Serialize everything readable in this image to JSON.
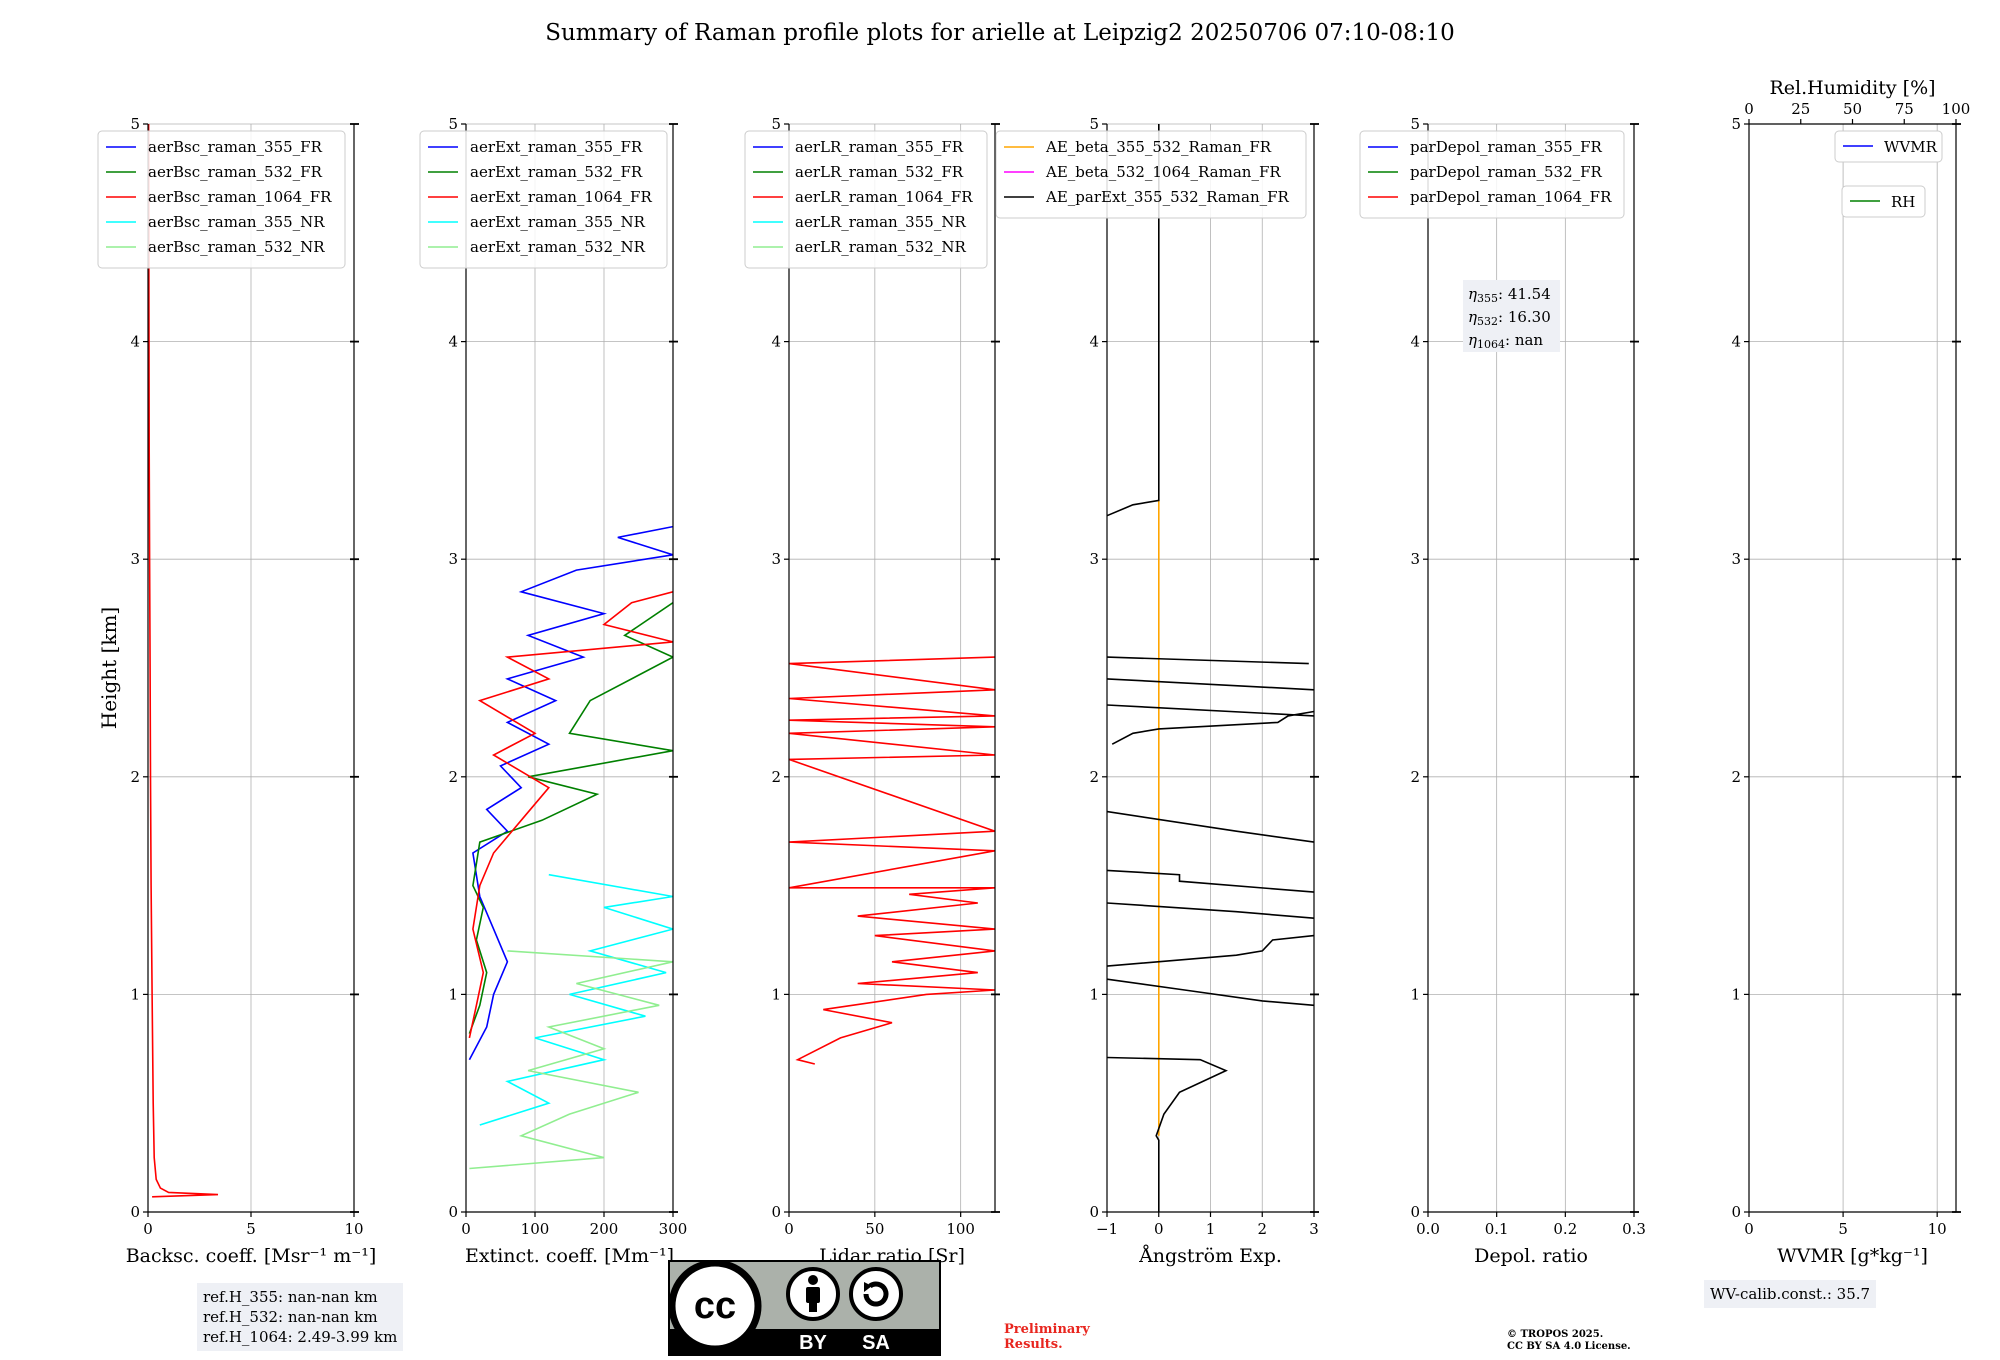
{
  "title": "Summary of Raman profile plots for arielle at Leipzig2 20250706 07:10-08:10",
  "colors": {
    "blue": "#0000ff",
    "green": "#008000",
    "red": "#ff0000",
    "cyan": "#00ffff",
    "lightgreen": "#90ee90",
    "orange": "#ffa500",
    "magenta": "#ff00ff",
    "black": "#000000"
  },
  "chart_data": [
    {
      "type": "line",
      "panel": "backscatter",
      "xlabel": "Backsc. coeff. [Msr⁻¹ m⁻¹]",
      "ylabel": "Height [km]",
      "xlim": [
        0,
        10
      ],
      "ylim": [
        0,
        5
      ],
      "xticks": [
        "0",
        "5",
        "10"
      ],
      "yticks": [
        "0",
        "1",
        "2",
        "3",
        "4",
        "5"
      ],
      "grid": true,
      "legend": "top-left",
      "series": [
        {
          "name": "aerBsc_raman_355_FR",
          "color": "#0000ff",
          "points": []
        },
        {
          "name": "aerBsc_raman_532_FR",
          "color": "#008000",
          "points": []
        },
        {
          "name": "aerBsc_raman_1064_FR",
          "color": "#ff0000",
          "points": [
            [
              0.2,
              0.07
            ],
            [
              3.4,
              0.08
            ],
            [
              1.0,
              0.09
            ],
            [
              0.6,
              0.11
            ],
            [
              0.4,
              0.15
            ],
            [
              0.3,
              0.25
            ],
            [
              0.25,
              0.5
            ],
            [
              0.2,
              1.0
            ],
            [
              0.15,
              1.5
            ],
            [
              0.12,
              2.0
            ],
            [
              0.1,
              2.5
            ],
            [
              0.08,
              3.0
            ],
            [
              0.06,
              3.5
            ],
            [
              0.05,
              4.0
            ],
            [
              0.04,
              4.5
            ],
            [
              0.03,
              5.0
            ]
          ]
        },
        {
          "name": "aerBsc_raman_355_NR",
          "color": "#00ffff",
          "points": []
        },
        {
          "name": "aerBsc_raman_532_NR",
          "color": "#90ee90",
          "points": []
        }
      ]
    },
    {
      "type": "line",
      "panel": "extinction",
      "xlabel": "Extinct. coeff. [Mm⁻¹]",
      "xlim": [
        0,
        300
      ],
      "ylim": [
        0,
        5
      ],
      "xticks": [
        "0",
        "100",
        "200",
        "300"
      ],
      "yticks": [
        "0",
        "1",
        "2",
        "3",
        "4",
        "5"
      ],
      "grid": true,
      "legend": "top-left",
      "series": [
        {
          "name": "aerExt_raman_355_FR",
          "color": "#0000ff",
          "points": [
            [
              5,
              0.7
            ],
            [
              30,
              0.85
            ],
            [
              40,
              1.0
            ],
            [
              60,
              1.15
            ],
            [
              40,
              1.3
            ],
            [
              20,
              1.45
            ],
            [
              10,
              1.65
            ],
            [
              60,
              1.75
            ],
            [
              30,
              1.85
            ],
            [
              80,
              1.95
            ],
            [
              50,
              2.05
            ],
            [
              120,
              2.15
            ],
            [
              60,
              2.25
            ],
            [
              130,
              2.35
            ],
            [
              60,
              2.45
            ],
            [
              170,
              2.55
            ],
            [
              90,
              2.65
            ],
            [
              200,
              2.75
            ],
            [
              80,
              2.85
            ],
            [
              160,
              2.95
            ],
            [
              300,
              3.02
            ],
            [
              220,
              3.1
            ],
            [
              300,
              3.15
            ]
          ]
        },
        {
          "name": "aerExt_raman_532_FR",
          "color": "#008000",
          "points": [
            [
              5,
              0.82
            ],
            [
              20,
              0.95
            ],
            [
              30,
              1.1
            ],
            [
              15,
              1.25
            ],
            [
              25,
              1.4
            ],
            [
              10,
              1.5
            ],
            [
              20,
              1.7
            ],
            [
              110,
              1.8
            ],
            [
              190,
              1.92
            ],
            [
              90,
              2.0
            ],
            [
              300,
              2.12
            ],
            [
              150,
              2.2
            ],
            [
              180,
              2.35
            ],
            [
              300,
              2.55
            ],
            [
              230,
              2.65
            ],
            [
              300,
              2.8
            ]
          ]
        },
        {
          "name": "aerExt_raman_1064_FR",
          "color": "#ff0000",
          "points": [
            [
              5,
              0.8
            ],
            [
              15,
              0.95
            ],
            [
              25,
              1.1
            ],
            [
              10,
              1.3
            ],
            [
              20,
              1.5
            ],
            [
              40,
              1.65
            ],
            [
              80,
              1.8
            ],
            [
              120,
              1.95
            ],
            [
              40,
              2.1
            ],
            [
              100,
              2.2
            ],
            [
              20,
              2.35
            ],
            [
              120,
              2.45
            ],
            [
              60,
              2.55
            ],
            [
              300,
              2.62
            ],
            [
              200,
              2.7
            ],
            [
              240,
              2.8
            ],
            [
              300,
              2.85
            ]
          ]
        },
        {
          "name": "aerExt_raman_355_NR",
          "color": "#00ffff",
          "points": [
            [
              20,
              0.4
            ],
            [
              120,
              0.5
            ],
            [
              60,
              0.6
            ],
            [
              200,
              0.7
            ],
            [
              100,
              0.8
            ],
            [
              260,
              0.9
            ],
            [
              150,
              1.0
            ],
            [
              290,
              1.1
            ],
            [
              180,
              1.2
            ],
            [
              300,
              1.3
            ],
            [
              200,
              1.4
            ],
            [
              300,
              1.45
            ],
            [
              120,
              1.55
            ]
          ]
        },
        {
          "name": "aerExt_raman_532_NR",
          "color": "#90ee90",
          "points": [
            [
              5,
              0.2
            ],
            [
              200,
              0.25
            ],
            [
              80,
              0.35
            ],
            [
              150,
              0.45
            ],
            [
              250,
              0.55
            ],
            [
              90,
              0.65
            ],
            [
              200,
              0.75
            ],
            [
              120,
              0.85
            ],
            [
              280,
              0.95
            ],
            [
              160,
              1.05
            ],
            [
              300,
              1.15
            ],
            [
              60,
              1.2
            ]
          ]
        }
      ]
    },
    {
      "type": "line",
      "panel": "lidar_ratio",
      "xlabel": "Lidar ratio [Sr]",
      "xlim": [
        0,
        120
      ],
      "ylim": [
        0,
        5
      ],
      "xticks": [
        "0",
        "50",
        "100"
      ],
      "yticks": [
        "0",
        "1",
        "2",
        "3",
        "4",
        "5"
      ],
      "grid": true,
      "legend": "top-left",
      "series": [
        {
          "name": "aerLR_raman_355_FR",
          "color": "#0000ff",
          "points": []
        },
        {
          "name": "aerLR_raman_532_FR",
          "color": "#008000",
          "points": []
        },
        {
          "name": "aerLR_raman_1064_FR",
          "color": "#ff0000",
          "points": [
            [
              15,
              0.68
            ],
            [
              5,
              0.7
            ],
            [
              30,
              0.8
            ],
            [
              60,
              0.87
            ],
            [
              20,
              0.93
            ],
            [
              80,
              1.0
            ],
            [
              120,
              1.02
            ],
            [
              40,
              1.05
            ],
            [
              110,
              1.1
            ],
            [
              60,
              1.15
            ],
            [
              120,
              1.2
            ],
            [
              50,
              1.27
            ],
            [
              120,
              1.3
            ],
            [
              40,
              1.36
            ],
            [
              110,
              1.42
            ],
            [
              70,
              1.46
            ],
            [
              120,
              1.49
            ],
            [
              0,
              1.49
            ],
            [
              120,
              1.66
            ],
            [
              0,
              1.7
            ],
            [
              120,
              1.75
            ],
            [
              0,
              2.08
            ],
            [
              120,
              2.1
            ],
            [
              0,
              2.2
            ],
            [
              120,
              2.23
            ],
            [
              0,
              2.26
            ],
            [
              120,
              2.28
            ],
            [
              0,
              2.36
            ],
            [
              120,
              2.4
            ],
            [
              0,
              2.52
            ],
            [
              120,
              2.55
            ]
          ]
        },
        {
          "name": "aerLR_raman_355_NR",
          "color": "#00ffff",
          "points": []
        },
        {
          "name": "aerLR_raman_532_NR",
          "color": "#90ee90",
          "points": []
        }
      ]
    },
    {
      "type": "line",
      "panel": "angstrom",
      "xlabel": "Ångström Exp.",
      "xlim": [
        -1,
        3
      ],
      "ylim": [
        0,
        5
      ],
      "xticks": [
        "−1",
        "0",
        "1",
        "2",
        "3"
      ],
      "yticks": [
        "0",
        "1",
        "2",
        "3",
        "4",
        "5"
      ],
      "grid": true,
      "legend": "top-left",
      "series": [
        {
          "name": "AE_beta_355_532_Raman_FR",
          "color": "#ffa500",
          "points": [
            [
              0,
              0.35
            ],
            [
              0,
              3.27
            ]
          ]
        },
        {
          "name": "AE_beta_532_1064_Raman_FR",
          "color": "#ff00ff",
          "points": []
        },
        {
          "name": "AE_parExt_355_532_Raman_FR",
          "color": "#000000",
          "points": [
            [
              0,
              0
            ],
            [
              0,
              0.33
            ],
            [
              -0.05,
              0.35
            ],
            [
              0.1,
              0.45
            ],
            [
              0.4,
              0.55
            ],
            [
              1.3,
              0.65
            ],
            [
              0.8,
              0.7
            ],
            [
              -1,
              0.71
            ],
            [
              null,
              null
            ],
            [
              -1,
              1.07
            ],
            [
              0.5,
              1.02
            ],
            [
              2.0,
              0.97
            ],
            [
              3,
              0.95
            ],
            [
              null,
              null
            ],
            [
              -1,
              1.13
            ],
            [
              1.5,
              1.18
            ],
            [
              2.0,
              1.2
            ],
            [
              2.2,
              1.25
            ],
            [
              3,
              1.27
            ],
            [
              null,
              null
            ],
            [
              -1,
              1.42
            ],
            [
              1.5,
              1.38
            ],
            [
              3,
              1.35
            ],
            [
              null,
              null
            ],
            [
              -1,
              1.57
            ],
            [
              0.4,
              1.55
            ],
            [
              0.4,
              1.52
            ],
            [
              3,
              1.47
            ],
            [
              null,
              null
            ],
            [
              -1,
              1.84
            ],
            [
              1.5,
              1.75
            ],
            [
              3,
              1.7
            ],
            [
              null,
              null
            ],
            [
              -0.9,
              2.15
            ],
            [
              -0.5,
              2.2
            ],
            [
              0,
              2.22
            ],
            [
              2.3,
              2.25
            ],
            [
              2.5,
              2.28
            ],
            [
              3,
              2.3
            ],
            [
              null,
              null
            ],
            [
              -1,
              2.33
            ],
            [
              3,
              2.28
            ],
            [
              null,
              null
            ],
            [
              -1,
              2.45
            ],
            [
              3,
              2.4
            ],
            [
              null,
              null
            ],
            [
              -1,
              2.55
            ],
            [
              2.9,
              2.52
            ],
            [
              null,
              null
            ],
            [
              -1,
              3.2
            ],
            [
              -0.5,
              3.25
            ],
            [
              0,
              3.27
            ],
            [
              0,
              5
            ]
          ]
        }
      ]
    },
    {
      "type": "line",
      "panel": "depolarization",
      "xlabel": "Depol. ratio",
      "xlim": [
        0,
        0.3
      ],
      "ylim": [
        0,
        5
      ],
      "xticks": [
        "0.0",
        "0.1",
        "0.2",
        "0.3"
      ],
      "yticks": [
        "0",
        "1",
        "2",
        "3",
        "4",
        "5"
      ],
      "grid": true,
      "legend": "top-left",
      "series": [
        {
          "name": "parDepol_raman_355_FR",
          "color": "#0000ff",
          "points": []
        },
        {
          "name": "parDepol_raman_532_FR",
          "color": "#008000",
          "points": []
        },
        {
          "name": "parDepol_raman_1064_FR",
          "color": "#ff0000",
          "points": []
        }
      ],
      "annotation": [
        {
          "sub": "355",
          "value": "41.54"
        },
        {
          "sub": "532",
          "value": "16.30"
        },
        {
          "sub": "1064",
          "value": "nan"
        }
      ]
    },
    {
      "type": "line",
      "panel": "water_vapor",
      "xlabel": "WVMR [g*kg⁻¹]",
      "x2label": "Rel.Humidity [%]",
      "xlim": [
        0,
        11
      ],
      "x2lim": [
        0,
        100
      ],
      "ylim": [
        0,
        5
      ],
      "xticks": [
        "0",
        "5",
        "10"
      ],
      "x2ticks": [
        "0",
        "25",
        "50",
        "75",
        "100"
      ],
      "yticks": [
        "0",
        "1",
        "2",
        "3",
        "4",
        "5"
      ],
      "grid": true,
      "series": [
        {
          "name": "WVMR",
          "color": "#0000ff",
          "points": []
        },
        {
          "name": "RH",
          "color": "#008000",
          "points": []
        }
      ]
    }
  ],
  "refh": {
    "line1": "ref.H_355: nan-nan km",
    "line2": "ref.H_532: nan-nan km",
    "line3": "ref.H_1064: 2.49-3.99 km"
  },
  "wv_calib": "WV-calib.const.: 35.7",
  "preliminary": {
    "line1": "Preliminary",
    "line2": "Results."
  },
  "copyright": {
    "line1": "© TROPOS 2025.",
    "line2": "CC BY SA 4.0 License."
  },
  "license_badge": {
    "by": "BY",
    "sa": "SA",
    "icon": "cc-by-sa-icon"
  }
}
